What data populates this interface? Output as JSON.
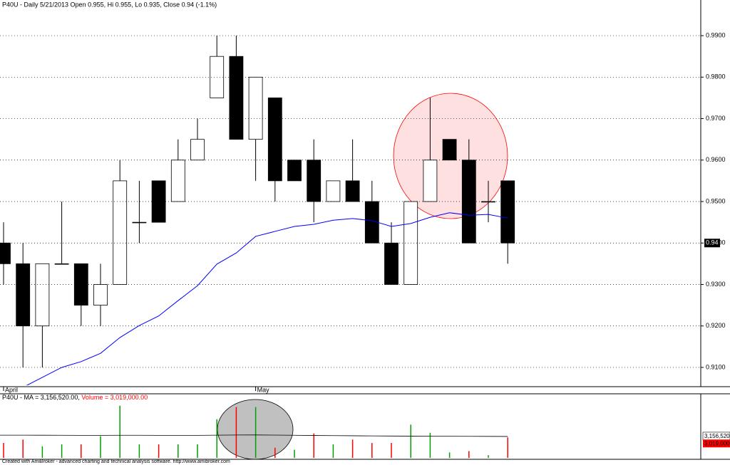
{
  "chart_data": [
    {
      "type": "candlestick",
      "title": "P40U - Daily 5/21/2013 Open 0.955, Hi 0.955, Lo 0.935, Close 0.94 (-1.1%)",
      "categories": [
        "April",
        null,
        null,
        null,
        null,
        null,
        null,
        null,
        null,
        null,
        null,
        null,
        null,
        "May",
        null,
        null,
        null,
        null,
        null,
        null,
        null,
        null,
        null,
        null,
        null,
        null,
        null
      ],
      "open": [
        0.94,
        0.935,
        0.92,
        0.935,
        0.935,
        0.925,
        0.93,
        0.945,
        0.955,
        0.95,
        0.96,
        0.975,
        0.985,
        0.965,
        0.975,
        0.96,
        0.96,
        0.95,
        0.955,
        0.95,
        0.94,
        0.93,
        0.95,
        0.965,
        0.96,
        0.95,
        0.955
      ],
      "high": [
        0.945,
        0.94,
        0.935,
        0.95,
        0.935,
        0.935,
        0.96,
        0.955,
        0.955,
        0.965,
        0.97,
        0.99,
        0.99,
        0.98,
        0.975,
        0.96,
        0.965,
        0.955,
        0.965,
        0.955,
        0.945,
        0.95,
        0.975,
        0.965,
        0.965,
        0.955,
        0.955
      ],
      "low": [
        0.93,
        0.91,
        0.91,
        0.935,
        0.92,
        0.92,
        0.93,
        0.94,
        0.945,
        0.95,
        0.96,
        0.975,
        0.965,
        0.955,
        0.95,
        0.955,
        0.945,
        0.95,
        0.95,
        0.94,
        0.93,
        0.93,
        0.95,
        0.96,
        0.94,
        0.945,
        0.935
      ],
      "close": [
        0.935,
        0.92,
        0.935,
        0.935,
        0.925,
        0.93,
        0.955,
        0.945,
        0.945,
        0.96,
        0.965,
        0.985,
        0.965,
        0.98,
        0.955,
        0.955,
        0.95,
        0.955,
        0.95,
        0.94,
        0.93,
        0.95,
        0.96,
        0.96,
        0.94,
        0.95,
        0.94
      ],
      "ma": [
        null,
        0.9052,
        0.9076,
        0.91,
        0.9114,
        0.9134,
        0.9172,
        0.9201,
        0.9224,
        0.9261,
        0.9297,
        0.9349,
        0.9376,
        0.9416,
        0.9428,
        0.944,
        0.9445,
        0.9455,
        0.9459,
        0.9454,
        0.944,
        0.9447,
        0.9462,
        0.9473,
        0.9467,
        0.9469,
        0.946
      ],
      "ma_color": "#0000ff",
      "up_color": "#ffffff",
      "down_color": "#000000",
      "ylim": [
        0.9057,
        0.9986
      ],
      "yticks": [
        {
          "value": 0.91,
          "label": "0.9100"
        },
        {
          "value": 0.92,
          "label": "0.9200"
        },
        {
          "value": 0.93,
          "label": "0.9300"
        },
        {
          "value": 0.94,
          "label": "0.9400"
        },
        {
          "value": 0.95,
          "label": "0.9500"
        },
        {
          "value": 0.96,
          "label": "0.9600"
        },
        {
          "value": 0.97,
          "label": "0.9700"
        },
        {
          "value": 0.98,
          "label": "0.9800"
        },
        {
          "value": 0.99,
          "label": "0.9900"
        }
      ],
      "grid": true
    },
    {
      "type": "bar",
      "title": "P40U - MA = 3,156,520.00, ",
      "title_volume": "Volume = 3,019,000.00",
      "values": [
        2200000,
        2700000,
        1700000,
        2000000,
        2000000,
        3200000,
        7700000,
        2000000,
        2000000,
        2000000,
        2000000,
        5700000,
        7500000,
        7500000,
        1500000,
        1200000,
        3600000,
        2000000,
        2700000,
        2200000,
        2200000,
        4900000,
        3700000,
        800000,
        1000000,
        400000,
        3019000
      ],
      "colors": [
        "#ff0000",
        "#ff0000",
        "#00a000",
        "#00a000",
        "#ff0000",
        "#00a000",
        "#00a000",
        "#00a000",
        "#ff0000",
        "#00a000",
        "#00a000",
        "#00a000",
        "#ff0000",
        "#00a000",
        "#ff0000",
        "#00a000",
        "#ff0000",
        "#00a000",
        "#ff0000",
        "#ff0000",
        "#ff0000",
        "#00a000",
        "#00a000",
        "#00a000",
        "#ff0000",
        "#00a000",
        "#ff0000"
      ],
      "ma": [
        3350000,
        3350000,
        3340000,
        3330000,
        3320000,
        3320000,
        3330000,
        3330000,
        3320000,
        3320000,
        3320000,
        3350000,
        3370000,
        3380000,
        3360000,
        3330000,
        3300000,
        3280000,
        3260000,
        3240000,
        3220000,
        3210000,
        3200000,
        3190000,
        3180000,
        3170000,
        3156520
      ],
      "ma_color": "#000000",
      "ma_last_label": "3,156,520",
      "volume_last_label": "3,019,000",
      "ylim": [
        0,
        8400000
      ]
    }
  ],
  "footer": "Created with AmiBroker - advanced charting and technical analysis software. http://www.amibroker.com"
}
